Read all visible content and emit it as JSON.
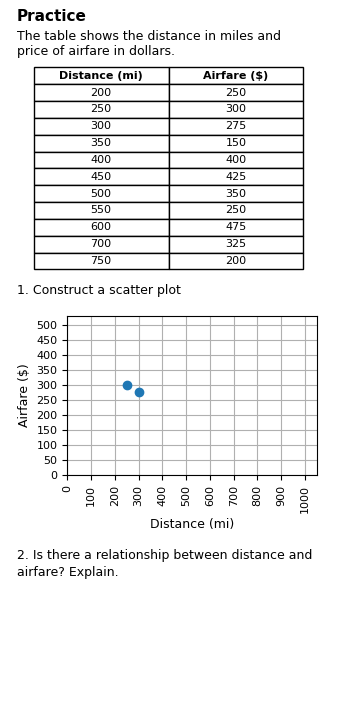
{
  "chart_data": [
    {
      "type": "table",
      "title": "Practice",
      "subtitle": "The table shows the distance in miles and\nprice of airfare in dollars.",
      "series": [
        {
          "name": "Distance (mi)",
          "values": [
            200,
            250,
            300,
            350,
            400,
            450,
            500,
            550,
            600,
            700,
            750
          ]
        },
        {
          "name": "Airfare ($)",
          "values": [
            250,
            300,
            275,
            150,
            400,
            425,
            350,
            250,
            475,
            325,
            200
          ]
        }
      ]
    },
    {
      "type": "scatter",
      "annotations": [
        "1. Construct a scatter plot",
        "2. Is there a relationship between distance and\nairfare? Explain."
      ],
      "xlabel": "Distance (mi)",
      "ylabel": "Airfare ($)",
      "x": [
        250,
        300
      ],
      "values": [
        300,
        275
      ],
      "xlim": [
        0,
        1050
      ],
      "ylim": [
        0,
        530
      ],
      "xticks": [
        0,
        100,
        200,
        300,
        400,
        500,
        600,
        700,
        800,
        900,
        1000
      ],
      "yticks": [
        0,
        50,
        100,
        150,
        200,
        250,
        300,
        350,
        400,
        450,
        500
      ],
      "grid": true
    }
  ]
}
